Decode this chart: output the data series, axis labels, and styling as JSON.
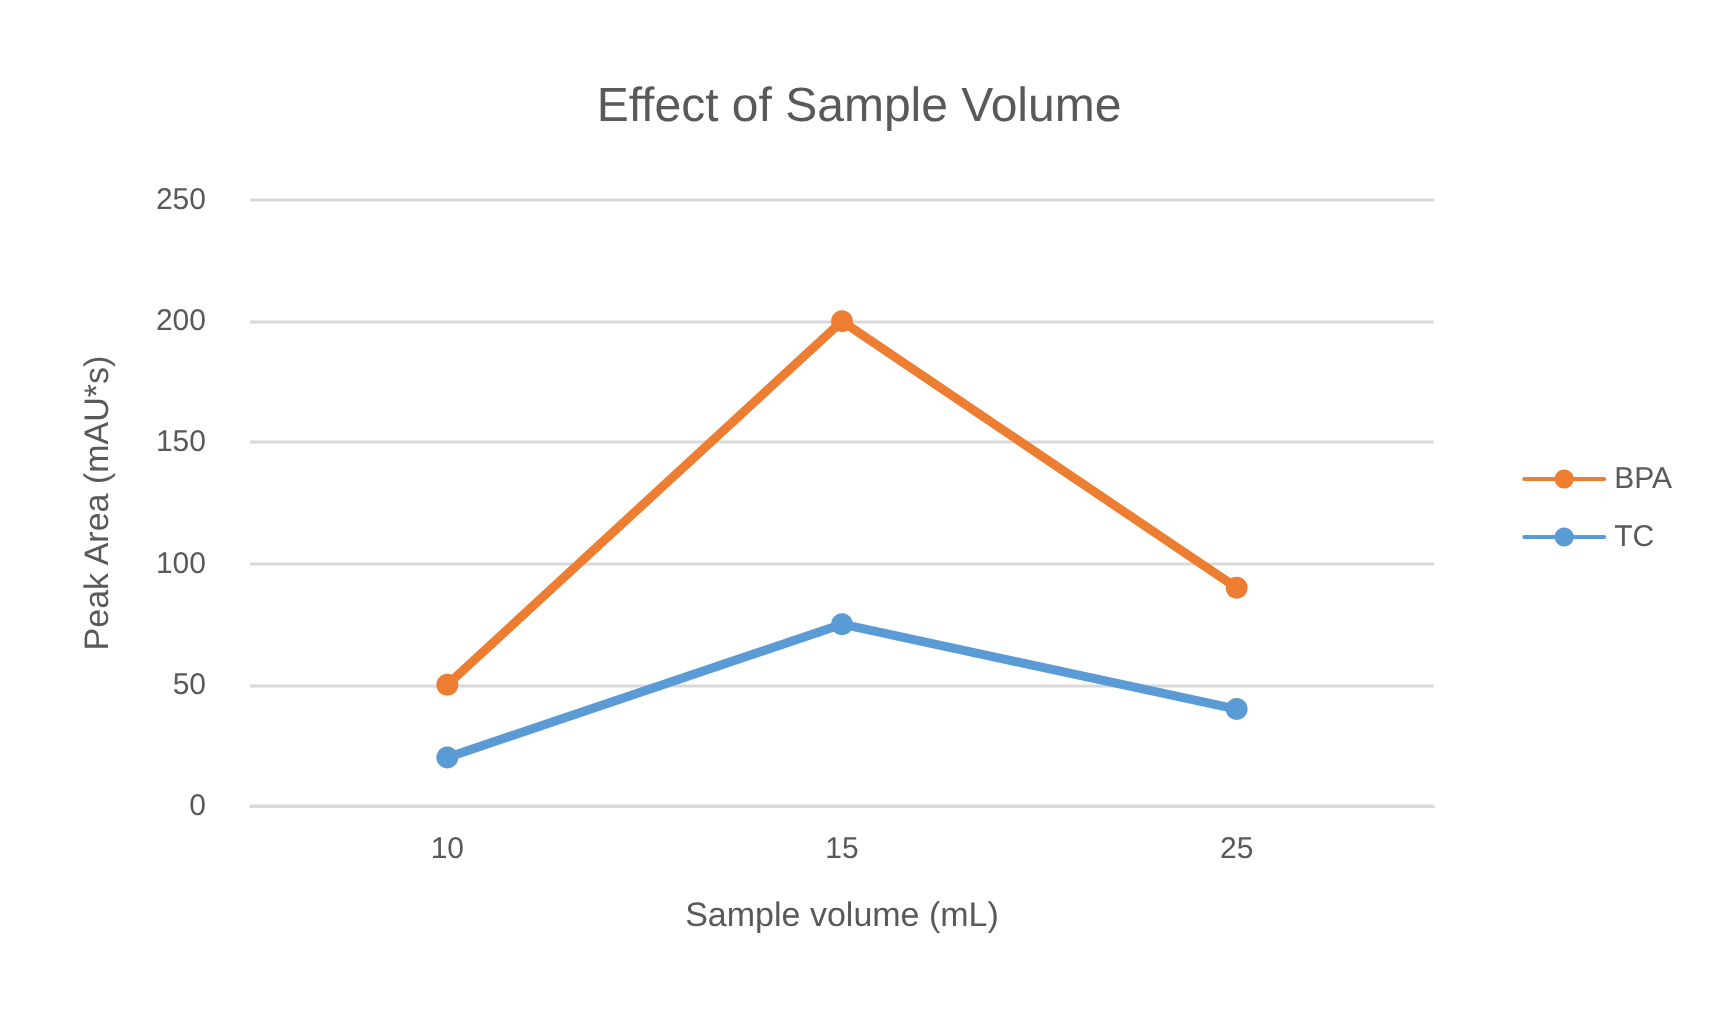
{
  "chart_data": {
    "type": "line",
    "title": "Effect of Sample Volume",
    "xlabel": "Sample volume (mL)",
    "ylabel": "Peak Area (mAU*s)",
    "categories": [
      "10",
      "15",
      "25"
    ],
    "series": [
      {
        "name": "BPA",
        "color": "#ed7d31",
        "values": [
          50,
          200,
          90
        ]
      },
      {
        "name": "TC",
        "color": "#5b9bd5",
        "values": [
          20,
          75,
          40
        ]
      }
    ],
    "ylim": [
      0,
      250
    ],
    "yticks": [
      0,
      50,
      100,
      150,
      200,
      250
    ],
    "grid": "y",
    "legend": "right",
    "marker": "circle",
    "line_style": "solid"
  }
}
